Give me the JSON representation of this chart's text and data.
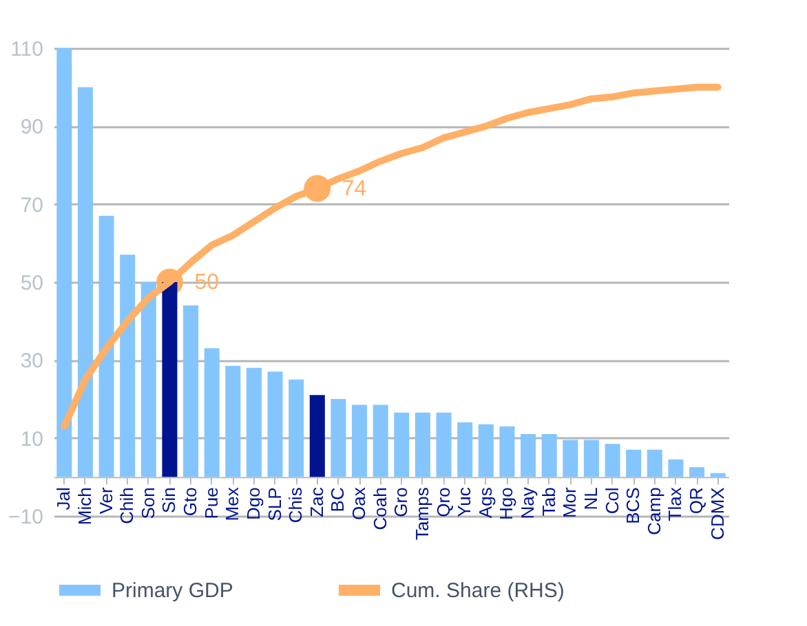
{
  "chart_data": {
    "type": "bar",
    "categories": [
      "Jal",
      "Mich",
      "Ver",
      "Chih",
      "Son",
      "Sin",
      "Gto",
      "Pue",
      "Mex",
      "Dgo",
      "SLP",
      "Chis",
      "Zac",
      "BC",
      "Oax",
      "Coah",
      "Gro",
      "Tamps",
      "Qro",
      "Yuc",
      "Ags",
      "Hgo",
      "Nay",
      "Tab",
      "Mor",
      "NL",
      "Col",
      "BCS",
      "Camp",
      "Tlax",
      "QR",
      "CDMX"
    ],
    "series": [
      {
        "name": "Primary GDP",
        "color": "#85c5fd",
        "colors": [
          "#85c5fd",
          "#85c5fd",
          "#85c5fd",
          "#85c5fd",
          "#85c5fd",
          "#001490",
          "#85c5fd",
          "#85c5fd",
          "#85c5fd",
          "#85c5fd",
          "#85c5fd",
          "#85c5fd",
          "#001490",
          "#85c5fd",
          "#85c5fd",
          "#85c5fd",
          "#85c5fd",
          "#85c5fd",
          "#85c5fd",
          "#85c5fd",
          "#85c5fd",
          "#85c5fd",
          "#85c5fd",
          "#85c5fd",
          "#85c5fd",
          "#85c5fd",
          "#85c5fd",
          "#85c5fd",
          "#85c5fd",
          "#85c5fd",
          "#85c5fd",
          "#85c5fd"
        ],
        "values": [
          110,
          100,
          67,
          57,
          50,
          50,
          44,
          33,
          28.5,
          28,
          27,
          25,
          21,
          20,
          18.5,
          18.5,
          16.5,
          16.5,
          16.5,
          14,
          13.5,
          13,
          11,
          11,
          9.5,
          9.5,
          8.5,
          7,
          7,
          4.5,
          2.5,
          1
        ]
      },
      {
        "name": "Cum. Share (RHS)",
        "type": "line",
        "color": "#ffb066",
        "marker": "none",
        "values": [
          13,
          25,
          33,
          40,
          46,
          50,
          55,
          59.5,
          62,
          65.5,
          69,
          72,
          74,
          76.5,
          78.5,
          81,
          83,
          84.5,
          87,
          88.5,
          90,
          92,
          93.5,
          94.5,
          95.5,
          97,
          97.5,
          98.5,
          99,
          99.5,
          100,
          100
        ]
      }
    ],
    "annotations": [
      {
        "text": "50",
        "x": "Sin",
        "y": 50
      },
      {
        "text": "74",
        "x": "Zac",
        "y": 74
      }
    ],
    "ylim": [
      -10,
      110
    ],
    "yticks": [
      -10,
      10,
      30,
      50,
      70,
      90,
      110
    ],
    "grid": "y",
    "legend": "bottom"
  }
}
